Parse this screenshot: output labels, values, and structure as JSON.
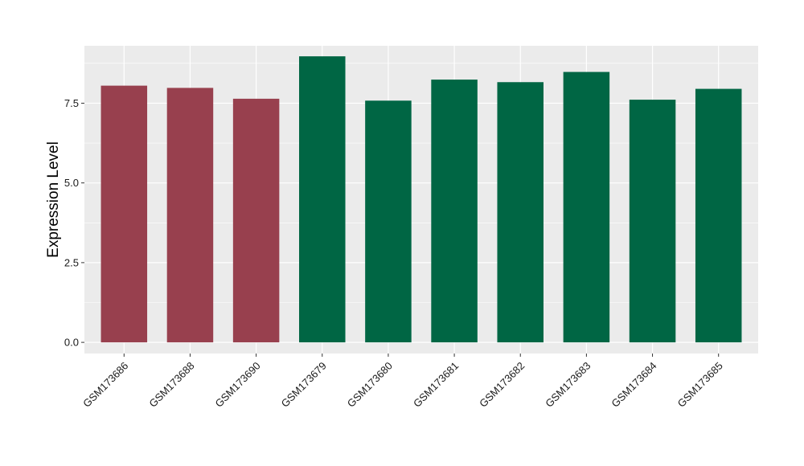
{
  "chart_data": {
    "type": "bar",
    "title": "",
    "xlabel": "",
    "ylabel": "Expression Level",
    "ylim": [
      -0.35,
      9.3
    ],
    "yticks": [
      0.0,
      2.5,
      5.0,
      7.5
    ],
    "ytick_labels": [
      "0.0",
      "2.5",
      "5.0",
      "7.5"
    ],
    "grid": true,
    "categories": [
      "GSM173686",
      "GSM173688",
      "GSM173690",
      "GSM173679",
      "GSM173680",
      "GSM173681",
      "GSM173682",
      "GSM173683",
      "GSM173684",
      "GSM173685"
    ],
    "values": [
      8.05,
      7.98,
      7.64,
      8.97,
      7.58,
      8.24,
      8.16,
      8.48,
      7.61,
      7.95
    ],
    "bar_colors": [
      "#98404e",
      "#98404e",
      "#98404e",
      "#006644",
      "#006644",
      "#006644",
      "#006644",
      "#006644",
      "#006644",
      "#006644"
    ],
    "panel_background": "#ebebeb",
    "gridline_color": "#ffffff"
  }
}
